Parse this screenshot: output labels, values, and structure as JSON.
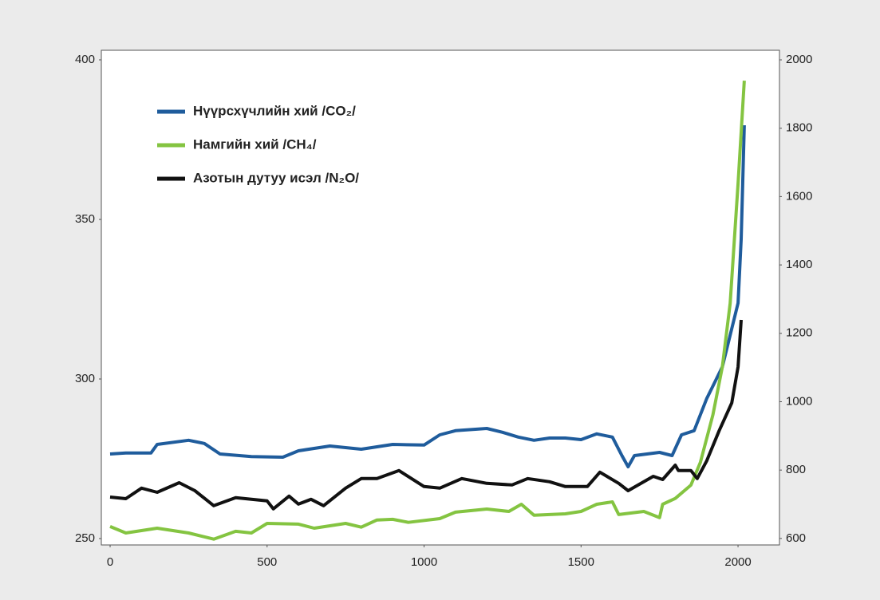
{
  "chart_data": {
    "type": "line",
    "legend": "upper left",
    "xlim": [
      -28,
      2132
    ],
    "xticks": [
      0,
      500,
      1000,
      1500,
      2000
    ],
    "ylim": [
      248,
      403
    ],
    "yticks": [
      250,
      300,
      350,
      400
    ],
    "y2lim": [
      581,
      2028
    ],
    "y2ticks": [
      600,
      800,
      1000,
      1200,
      1400,
      1600,
      1800,
      2000
    ],
    "series": [
      {
        "name": "Нүүрсхүчлийн хий /CO₂/",
        "color": "#1f5c9c",
        "x": [
          0,
          50,
          130,
          150,
          250,
          300,
          350,
          450,
          550,
          600,
          700,
          800,
          900,
          1000,
          1050,
          1100,
          1200,
          1250,
          1300,
          1350,
          1400,
          1450,
          1500,
          1550,
          1600,
          1630,
          1650,
          1670,
          1750,
          1790,
          1820,
          1860,
          1900,
          1950,
          2000,
          2010,
          2020
        ],
        "values": [
          276.5,
          276.8,
          276.8,
          279.5,
          280.8,
          279.8,
          276.5,
          275.7,
          275.5,
          277.5,
          279,
          278,
          279.5,
          279.3,
          282.5,
          283.8,
          284.5,
          283.3,
          281.8,
          280.8,
          281.5,
          281.5,
          281,
          282.8,
          281.8,
          276,
          272.5,
          276,
          277,
          276,
          282.5,
          283.8,
          293.8,
          303.8,
          323.8,
          343.8,
          379.5
        ]
      },
      {
        "name": "Намгийн хий /CH₄/",
        "color": "#84c441",
        "axis": "y2",
        "x": [
          0,
          50,
          150,
          250,
          330,
          400,
          450,
          500,
          600,
          650,
          750,
          800,
          850,
          900,
          950,
          1050,
          1100,
          1200,
          1270,
          1310,
          1350,
          1450,
          1500,
          1550,
          1600,
          1620,
          1700,
          1750,
          1760,
          1800,
          1850,
          1880,
          1920,
          1950,
          1975,
          2000,
          2020
        ],
        "values": [
          635,
          616,
          630,
          616,
          598,
          621,
          616,
          644,
          642,
          630,
          644,
          633,
          654,
          656,
          647,
          658,
          677,
          686,
          679,
          700,
          668,
          672,
          679,
          700,
          707,
          670,
          679,
          661,
          700,
          717,
          756,
          822,
          962,
          1102,
          1288,
          1638,
          1939
        ]
      },
      {
        "name": "Азотын дутуу исэл /N₂O/",
        "color": "#111111",
        "x": [
          0,
          50,
          100,
          150,
          220,
          270,
          330,
          400,
          500,
          520,
          570,
          600,
          640,
          680,
          750,
          800,
          850,
          920,
          1000,
          1050,
          1120,
          1200,
          1280,
          1330,
          1400,
          1450,
          1520,
          1560,
          1620,
          1650,
          1730,
          1760,
          1800,
          1810,
          1850,
          1870,
          1900,
          1940,
          1980,
          2000,
          2010
        ],
        "values": [
          263,
          262.5,
          265.8,
          264.5,
          267.5,
          265,
          260.3,
          262.8,
          261.8,
          259.3,
          263.3,
          260.8,
          262.3,
          260.3,
          265.8,
          268.8,
          268.8,
          271.3,
          266.3,
          265.8,
          268.8,
          267.3,
          266.8,
          268.8,
          267.8,
          266.3,
          266.3,
          270.8,
          267.3,
          265,
          269.5,
          268.5,
          273,
          271.3,
          271.3,
          268.8,
          274.3,
          283.8,
          292.5,
          303.8,
          318.5
        ]
      }
    ]
  }
}
